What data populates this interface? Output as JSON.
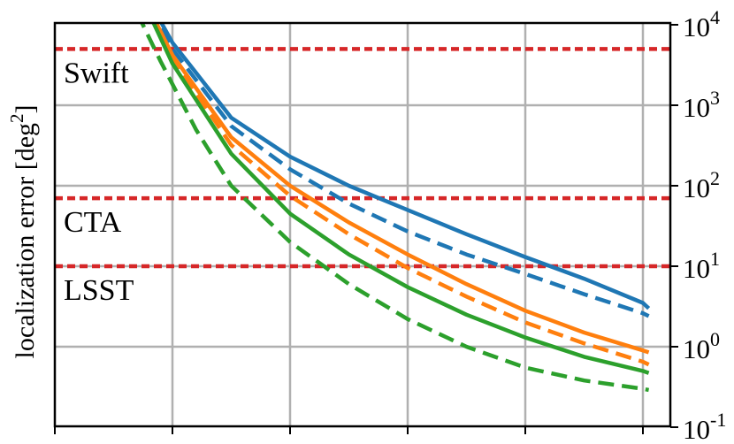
{
  "chart_data": {
    "type": "line",
    "title": "",
    "xlabel": "",
    "ylabel": "localization error [deg",
    "ylabel_sup": "2",
    "ylabel_close": "]",
    "yscale": "log",
    "ylim": [
      0.1,
      10000
    ],
    "xlim": [
      0,
      5.1
    ],
    "grid": true,
    "y_tick_labels": [
      {
        "value": 0.1,
        "base": "10",
        "exp": "-1"
      },
      {
        "value": 1,
        "base": "10",
        "exp": "0"
      },
      {
        "value": 10,
        "base": "10",
        "exp": "1"
      },
      {
        "value": 100,
        "base": "10",
        "exp": "2"
      },
      {
        "value": 1000,
        "base": "10",
        "exp": "3"
      },
      {
        "value": 10000,
        "base": "10",
        "exp": "4"
      }
    ],
    "x_ticks": [
      0,
      1,
      2,
      3,
      4,
      5
    ],
    "series": [
      {
        "color": "#1f77b4",
        "dash": false,
        "points": [
          [
            0.8,
            20000
          ],
          [
            1.0,
            6000
          ],
          [
            1.5,
            700
          ],
          [
            2.0,
            230
          ],
          [
            2.5,
            100
          ],
          [
            3.0,
            50
          ],
          [
            3.5,
            25
          ],
          [
            4.0,
            13
          ],
          [
            4.5,
            7
          ],
          [
            5.0,
            3.5
          ],
          [
            5.05,
            3.0
          ]
        ]
      },
      {
        "color": "#1f77b4",
        "dash": true,
        "points": [
          [
            0.8,
            16000
          ],
          [
            1.0,
            5000
          ],
          [
            1.5,
            550
          ],
          [
            2.0,
            160
          ],
          [
            2.5,
            60
          ],
          [
            3.0,
            27
          ],
          [
            3.5,
            14
          ],
          [
            4.0,
            8
          ],
          [
            4.5,
            4.5
          ],
          [
            5.0,
            2.6
          ],
          [
            5.05,
            2.4
          ]
        ]
      },
      {
        "color": "#ff7f0e",
        "dash": false,
        "points": [
          [
            0.8,
            16000
          ],
          [
            1.0,
            4200
          ],
          [
            1.5,
            400
          ],
          [
            2.0,
            100
          ],
          [
            2.5,
            35
          ],
          [
            3.0,
            14
          ],
          [
            3.5,
            6
          ],
          [
            4.0,
            2.8
          ],
          [
            4.5,
            1.5
          ],
          [
            5.0,
            0.9
          ],
          [
            5.05,
            0.85
          ]
        ]
      },
      {
        "color": "#ff7f0e",
        "dash": true,
        "points": [
          [
            0.8,
            14000
          ],
          [
            1.0,
            3800
          ],
          [
            1.5,
            320
          ],
          [
            2.0,
            75
          ],
          [
            2.5,
            25
          ],
          [
            3.0,
            9.5
          ],
          [
            3.5,
            4.2
          ],
          [
            4.0,
            2
          ],
          [
            4.5,
            1.1
          ],
          [
            5.0,
            0.65
          ],
          [
            5.05,
            0.6
          ]
        ]
      },
      {
        "color": "#2ca02c",
        "dash": false,
        "points": [
          [
            0.8,
            14000
          ],
          [
            1.0,
            3300
          ],
          [
            1.5,
            250
          ],
          [
            2.0,
            45
          ],
          [
            2.5,
            14
          ],
          [
            3.0,
            5.5
          ],
          [
            3.5,
            2.5
          ],
          [
            4.0,
            1.3
          ],
          [
            4.5,
            0.75
          ],
          [
            5.0,
            0.5
          ],
          [
            5.05,
            0.47
          ]
        ]
      },
      {
        "color": "#2ca02c",
        "dash": true,
        "points": [
          [
            0.7,
            14000
          ],
          [
            0.9,
            3500
          ],
          [
            1.2,
            500
          ],
          [
            1.5,
            100
          ],
          [
            2.0,
            20
          ],
          [
            2.5,
            6
          ],
          [
            3.0,
            2.2
          ],
          [
            3.5,
            1
          ],
          [
            4.0,
            0.55
          ],
          [
            4.5,
            0.38
          ],
          [
            5.0,
            0.3
          ],
          [
            5.05,
            0.29
          ]
        ]
      }
    ],
    "thresholds": [
      {
        "label": "Swift",
        "value": 5000,
        "color": "#d62728"
      },
      {
        "label": "CTA",
        "value": 70,
        "color": "#d62728"
      },
      {
        "label": "LSST",
        "value": 10,
        "color": "#d62728"
      }
    ]
  }
}
